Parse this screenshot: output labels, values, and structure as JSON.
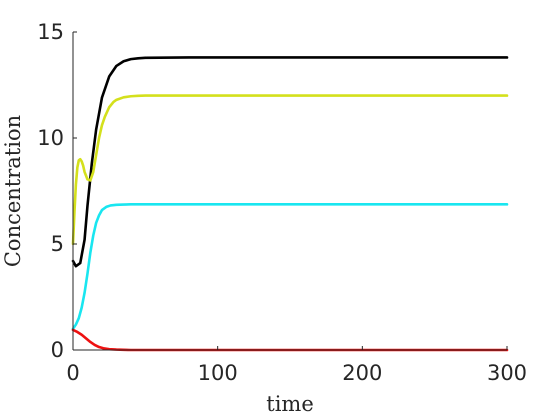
{
  "chart_data": {
    "type": "line",
    "title": "",
    "xlabel": "time",
    "ylabel": "Concentration",
    "xlim": [
      0,
      300
    ],
    "ylim": [
      0,
      15
    ],
    "xticks": [
      0,
      100,
      200,
      300
    ],
    "xtick_labels": [
      "0",
      "100",
      "200",
      "300"
    ],
    "yticks": [
      0,
      5,
      10,
      15
    ],
    "ytick_labels": [
      "0",
      "5",
      "10",
      "15"
    ],
    "grid": false,
    "legend": null,
    "series": [
      {
        "color": "#000000",
        "x": [
          0,
          2,
          5,
          8,
          10,
          13,
          16,
          20,
          25,
          30,
          35,
          40,
          45,
          50,
          60,
          80,
          100,
          150,
          200,
          250,
          300
        ],
        "y": [
          4.2,
          3.95,
          4.1,
          5.2,
          6.8,
          8.8,
          10.4,
          11.9,
          12.9,
          13.4,
          13.62,
          13.72,
          13.76,
          13.78,
          13.79,
          13.8,
          13.8,
          13.8,
          13.8,
          13.8,
          13.8
        ]
      },
      {
        "color": "#d4e01c",
        "x": [
          0,
          1,
          2,
          3,
          4,
          5,
          6,
          7,
          8,
          10,
          12,
          14,
          16,
          18,
          20,
          22,
          25,
          28,
          30,
          35,
          40,
          45,
          50,
          60,
          80,
          100,
          150,
          200,
          250,
          300
        ],
        "y": [
          5.0,
          6.5,
          7.8,
          8.6,
          8.95,
          9.0,
          8.9,
          8.7,
          8.4,
          8.05,
          8.0,
          8.4,
          9.2,
          10.0,
          10.6,
          11.0,
          11.45,
          11.7,
          11.8,
          11.92,
          11.97,
          11.99,
          12.0,
          12.0,
          12.0,
          12.0,
          12.0,
          12.0,
          12.0,
          12.0
        ]
      },
      {
        "color": "#19e6f0",
        "x": [
          0,
          2,
          4,
          6,
          8,
          10,
          12,
          14,
          16,
          18,
          20,
          23,
          26,
          30,
          35,
          40,
          50,
          60,
          80,
          100,
          150,
          200,
          250,
          300
        ],
        "y": [
          1.0,
          1.2,
          1.5,
          2.0,
          2.7,
          3.6,
          4.6,
          5.4,
          6.0,
          6.35,
          6.6,
          6.75,
          6.82,
          6.85,
          6.86,
          6.87,
          6.87,
          6.87,
          6.87,
          6.87,
          6.87,
          6.87,
          6.87,
          6.87
        ]
      },
      {
        "color": "#ee1111",
        "x": [
          0,
          3,
          6,
          9,
          12,
          15,
          18,
          21,
          25,
          30,
          35,
          40,
          50,
          60,
          100,
          150,
          200,
          250,
          300
        ],
        "y": [
          0.95,
          0.85,
          0.72,
          0.55,
          0.38,
          0.24,
          0.14,
          0.08,
          0.04,
          0.02,
          0.01,
          0.0,
          0.0,
          0.0,
          0.0,
          0.0,
          0.0,
          0.0,
          0.0
        ]
      }
    ]
  }
}
